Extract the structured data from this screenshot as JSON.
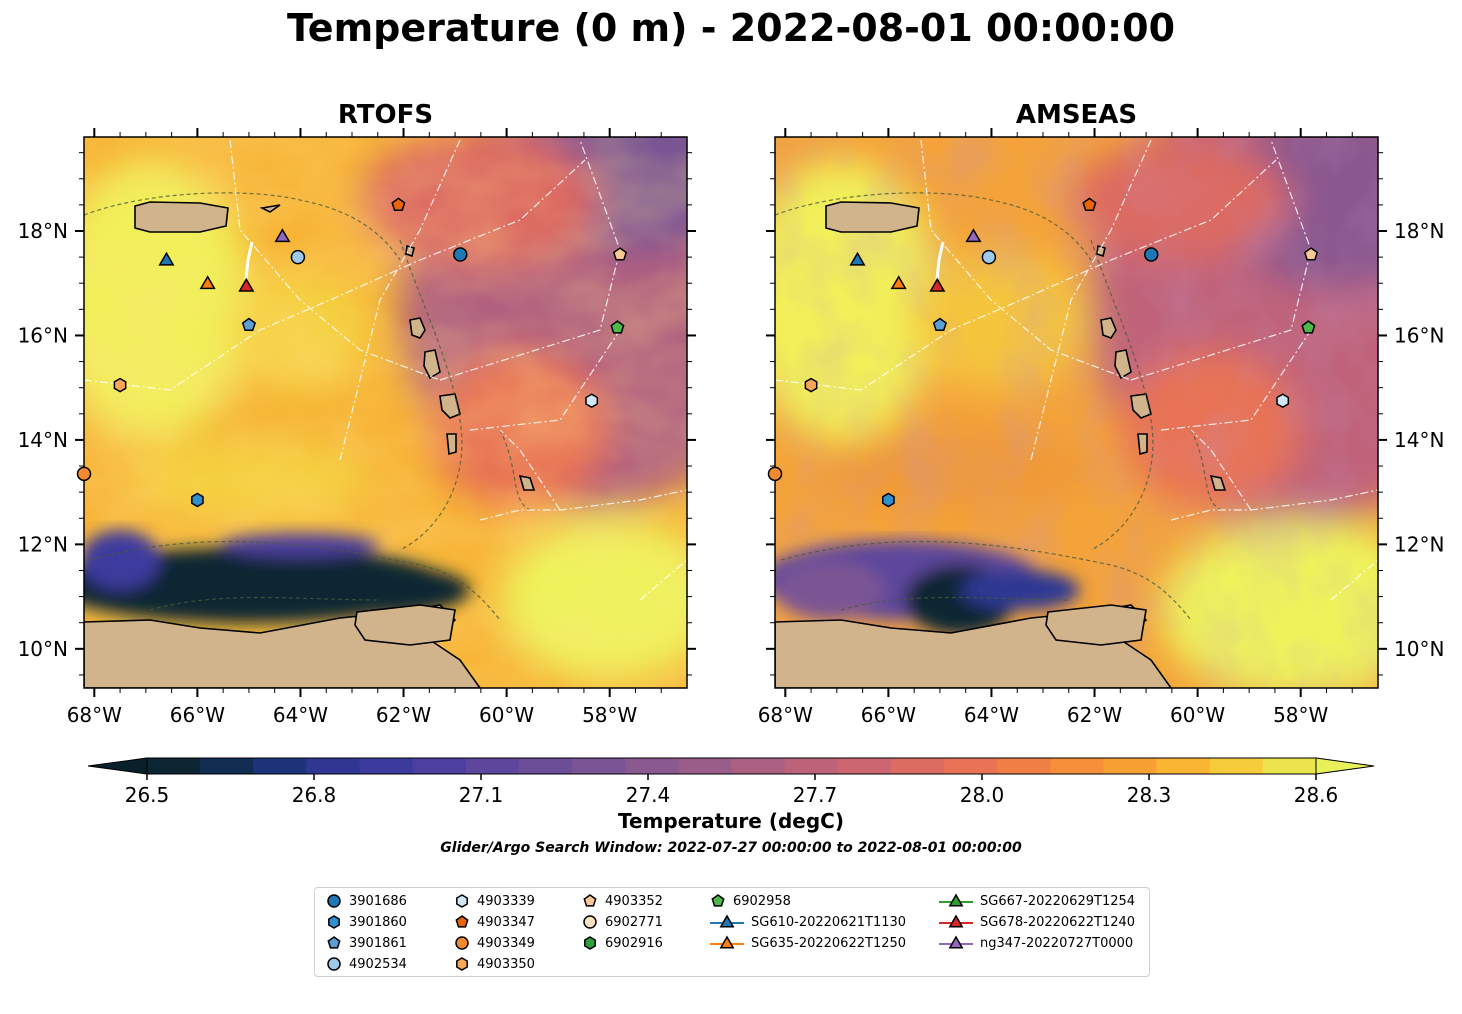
{
  "figure": {
    "title": "Temperature (0 m) - 2022-08-01 00:00:00",
    "search_window": "Glider/Argo Search Window: 2022-07-27 00:00:00 to 2022-08-01 00:00:00"
  },
  "panels": [
    {
      "title": "RTOFS"
    },
    {
      "title": "AMSEAS"
    }
  ],
  "axes": {
    "lon_ticks": [
      "68°W",
      "66°W",
      "64°W",
      "62°W",
      "60°W",
      "58°W"
    ],
    "lat_ticks": [
      "18°N",
      "16°N",
      "14°N",
      "12°N",
      "10°N"
    ]
  },
  "colorbar": {
    "label": "Temperature (degC)",
    "ticks": [
      "26.5",
      "26.8",
      "27.1",
      "27.4",
      "27.7",
      "28.0",
      "28.3",
      "28.6"
    ],
    "range": [
      26.5,
      28.6
    ],
    "extend": "both",
    "colors": [
      "#0b2533",
      "#122d52",
      "#1e347a",
      "#2f3793",
      "#3d3a9e",
      "#4d3f9f",
      "#5d469c",
      "#6b4d98",
      "#7a5494",
      "#8a598f",
      "#9a5d89",
      "#ab6082",
      "#bc637a",
      "#cc6670",
      "#dc6b62",
      "#e87355",
      "#f07f45",
      "#f68e3a",
      "#f9a034",
      "#fab633",
      "#f6cc3a",
      "#ece44e"
    ],
    "under_color": "#08202b",
    "over_color": "#e9f15a"
  },
  "colors": {
    "land": "#d2b48c",
    "river": "#a0b4cc"
  },
  "legend": [
    {
      "label": "3901686",
      "marker": "circle",
      "color": "#1f77b4"
    },
    {
      "label": "3901860",
      "marker": "hexagon",
      "color": "#2f8fcf"
    },
    {
      "label": "3901861",
      "marker": "pentagon",
      "color": "#5a9fd6"
    },
    {
      "label": "4902534",
      "marker": "circle",
      "color": "#9dc9ec"
    },
    {
      "label": "4903339",
      "marker": "hexagon",
      "color": "#cfe7f7"
    },
    {
      "label": "4903347",
      "marker": "pentagon",
      "color": "#e8650a"
    },
    {
      "label": "4903349",
      "marker": "circle",
      "color": "#f28a32"
    },
    {
      "label": "4903350",
      "marker": "hexagon",
      "color": "#f7a65a"
    },
    {
      "label": "4903352",
      "marker": "pentagon",
      "color": "#fbc796"
    },
    {
      "label": "6902771",
      "marker": "circle",
      "color": "#fde1c4"
    },
    {
      "label": "6902916",
      "marker": "hexagon",
      "color": "#2e9e3f"
    },
    {
      "label": "6902958",
      "marker": "pentagon",
      "color": "#4cb94a"
    },
    {
      "label": "SG610-20220621T1130",
      "marker": "triangle",
      "color": "#1f77b4",
      "line": true
    },
    {
      "label": "SG635-20220622T1250",
      "marker": "triangle",
      "color": "#ff7f0e",
      "line": true
    },
    {
      "label": "SG667-20220629T1254",
      "marker": "triangle",
      "color": "#2ca02c",
      "line": true
    },
    {
      "label": "SG678-20220622T1240",
      "marker": "triangle",
      "color": "#d62728",
      "line": true
    },
    {
      "label": "ng347-20220727T0000",
      "marker": "triangle",
      "color": "#9467bd",
      "line": true
    }
  ],
  "platforms": [
    {
      "id": "3901686",
      "lon": -60.9,
      "lat": 17.55
    },
    {
      "id": "3901860",
      "lon": -66.0,
      "lat": 12.85
    },
    {
      "id": "3901861",
      "lon": -65.0,
      "lat": 16.2
    },
    {
      "id": "4902534",
      "lon": -64.05,
      "lat": 17.5
    },
    {
      "id": "4903339",
      "lon": -58.35,
      "lat": 14.75
    },
    {
      "id": "4903347",
      "lon": -62.1,
      "lat": 18.5
    },
    {
      "id": "4903349",
      "lon": -68.2,
      "lat": 13.35
    },
    {
      "id": "4903350",
      "lon": -67.5,
      "lat": 15.05
    },
    {
      "id": "4903352",
      "lon": -57.8,
      "lat": 17.55
    },
    {
      "id": "6902958",
      "lon": -57.85,
      "lat": 16.15
    },
    {
      "id": "SG610-20220621T1130",
      "lon": -66.6,
      "lat": 17.45
    },
    {
      "id": "SG635-20220622T1250",
      "lon": -65.8,
      "lat": 17.0
    },
    {
      "id": "SG678-20220622T1240",
      "lon": -65.05,
      "lat": 16.95
    },
    {
      "id": "ng347-20220727T0000",
      "lon": -64.35,
      "lat": 17.9
    }
  ]
}
